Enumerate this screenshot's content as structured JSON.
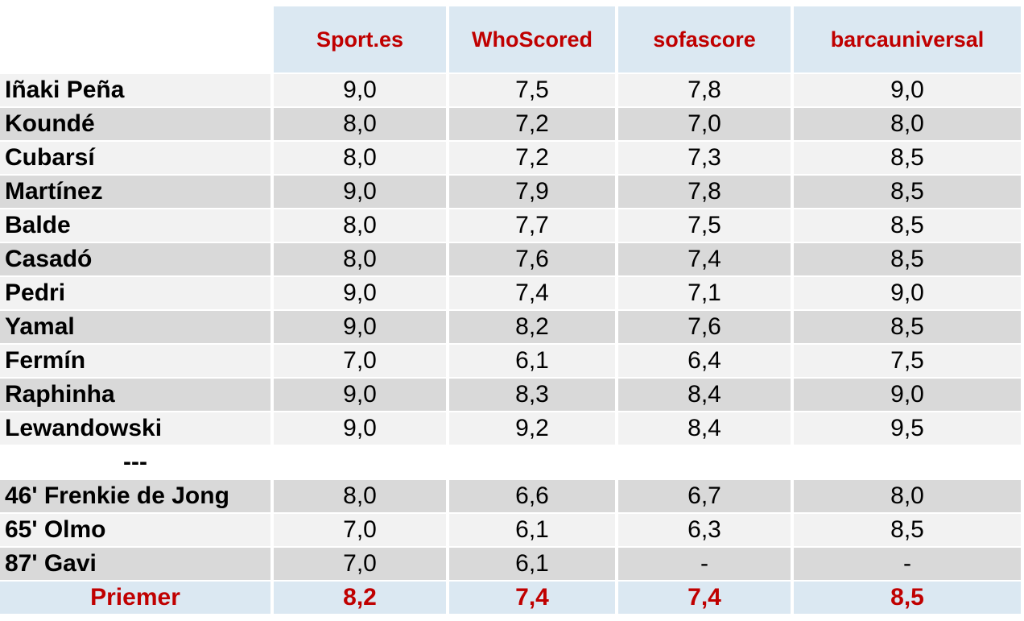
{
  "colors": {
    "header_bg": "#dbe8f2",
    "header_text": "#c00000",
    "row_light": "#f2f2f2",
    "row_dark": "#d9d9d9",
    "summary_bg": "#dbe8f2",
    "summary_text": "#c00000",
    "body_text": "#000000"
  },
  "chart_data": {
    "type": "table",
    "title": "",
    "corner_label": "",
    "columns": [
      "Sport.es",
      "WhoScored",
      "sofascore",
      "barcauniversal"
    ],
    "decimal_separator": ",",
    "rows": [
      {
        "name": "Iñaki Peña",
        "shade": "light",
        "values": [
          "9,0",
          "7,5",
          "7,8",
          "9,0"
        ]
      },
      {
        "name": "Koundé",
        "shade": "dark",
        "values": [
          "8,0",
          "7,2",
          "7,0",
          "8,0"
        ]
      },
      {
        "name": "Cubarsí",
        "shade": "light",
        "values": [
          "8,0",
          "7,2",
          "7,3",
          "8,5"
        ]
      },
      {
        "name": "Martínez",
        "shade": "dark",
        "values": [
          "9,0",
          "7,9",
          "7,8",
          "8,5"
        ]
      },
      {
        "name": "Balde",
        "shade": "light",
        "values": [
          "8,0",
          "7,7",
          "7,5",
          "8,5"
        ]
      },
      {
        "name": "Casadó",
        "shade": "dark",
        "values": [
          "8,0",
          "7,6",
          "7,4",
          "8,5"
        ]
      },
      {
        "name": "Pedri",
        "shade": "light",
        "values": [
          "9,0",
          "7,4",
          "7,1",
          "9,0"
        ]
      },
      {
        "name": "Yamal",
        "shade": "dark",
        "values": [
          "9,0",
          "8,2",
          "7,6",
          "8,5"
        ]
      },
      {
        "name": "Fermín",
        "shade": "light",
        "values": [
          "7,0",
          "6,1",
          "6,4",
          "7,5"
        ]
      },
      {
        "name": "Raphinha",
        "shade": "dark",
        "values": [
          "9,0",
          "8,3",
          "8,4",
          "9,0"
        ]
      },
      {
        "name": "Lewandowski",
        "shade": "light",
        "values": [
          "9,0",
          "9,2",
          "8,4",
          "9,5"
        ]
      },
      {
        "name": "---",
        "shade": "none",
        "values": [
          "",
          "",
          "",
          ""
        ]
      },
      {
        "name": "46' Frenkie de Jong",
        "shade": "dark",
        "values": [
          "8,0",
          "6,6",
          "6,7",
          "8,0"
        ]
      },
      {
        "name": "65' Olmo",
        "shade": "light",
        "values": [
          "7,0",
          "6,1",
          "6,3",
          "8,5"
        ]
      },
      {
        "name": "87' Gavi",
        "shade": "dark",
        "values": [
          "7,0",
          "6,1",
          "-",
          "-"
        ]
      },
      {
        "name": "Priemer",
        "shade": "accent",
        "values": [
          "8,2",
          "7,4",
          "7,4",
          "8,5"
        ]
      }
    ]
  }
}
